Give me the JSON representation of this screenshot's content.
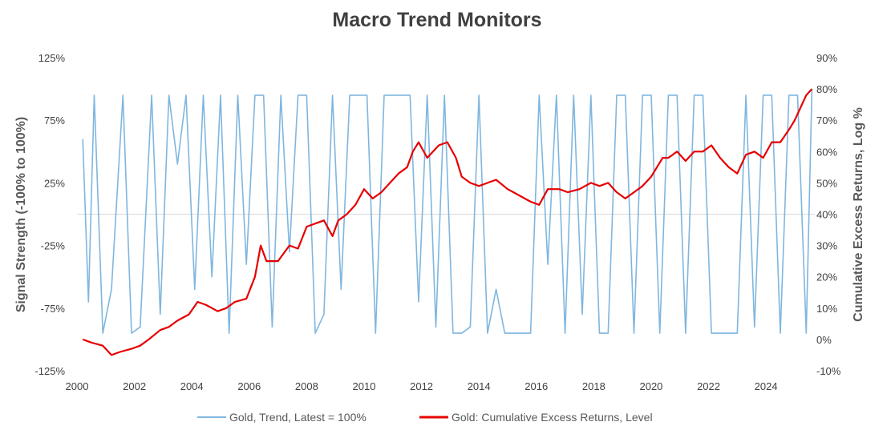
{
  "chart_data": {
    "type": "line",
    "title": "Macro Trend Monitors",
    "ylabel_left": "Signal Strength (-100% to 100%)",
    "ylabel_right": "Cumulative Excess Returns, Log %",
    "x_range": [
      2000,
      2025.7
    ],
    "x_ticks": [
      "2000",
      "2002",
      "2004",
      "2006",
      "2008",
      "2010",
      "2012",
      "2014",
      "2016",
      "2018",
      "2020",
      "2022",
      "2024"
    ],
    "y_left_range": [
      -125,
      125
    ],
    "y_left_ticks": [
      "125%",
      "75%",
      "25%",
      "-25%",
      "-75%",
      "-125%"
    ],
    "y_right_range": [
      -10,
      90
    ],
    "y_right_ticks": [
      "90%",
      "80%",
      "70%",
      "60%",
      "50%",
      "40%",
      "30%",
      "20%",
      "10%",
      "0%",
      "-10%"
    ],
    "grid": false,
    "legend_position": "bottom",
    "colors": {
      "trend": "#7fb6df",
      "returns": "#e60000",
      "zero_line": "#d9d9d9"
    },
    "series": [
      {
        "name": "Gold, Trend, Latest = 100%",
        "axis": "left",
        "note_style": "thin light-blue line oscillating between -100% and 100%",
        "x": [
          2000.2,
          2000.4,
          2000.6,
          2000.9,
          2001.2,
          2001.6,
          2001.9,
          2002.2,
          2002.6,
          2002.9,
          2003.2,
          2003.5,
          2003.8,
          2004.1,
          2004.4,
          2004.7,
          2005.0,
          2005.3,
          2005.6,
          2005.9,
          2006.2,
          2006.5,
          2006.8,
          2007.1,
          2007.4,
          2007.7,
          2008.0,
          2008.3,
          2008.6,
          2008.9,
          2009.2,
          2009.5,
          2009.8,
          2010.1,
          2010.4,
          2010.7,
          2011.0,
          2011.3,
          2011.6,
          2011.9,
          2012.2,
          2012.5,
          2012.8,
          2013.1,
          2013.4,
          2013.7,
          2014.0,
          2014.3,
          2014.6,
          2014.9,
          2015.2,
          2015.5,
          2015.8,
          2016.1,
          2016.4,
          2016.7,
          2017.0,
          2017.3,
          2017.6,
          2017.9,
          2018.2,
          2018.5,
          2018.8,
          2019.1,
          2019.4,
          2019.7,
          2020.0,
          2020.3,
          2020.6,
          2020.9,
          2021.2,
          2021.5,
          2021.8,
          2022.1,
          2022.4,
          2022.7,
          2023.0,
          2023.3,
          2023.6,
          2023.9,
          2024.2,
          2024.5,
          2024.8,
          2025.1,
          2025.4,
          2025.6
        ],
        "values": [
          60,
          -70,
          95,
          -95,
          -60,
          95,
          -95,
          -90,
          95,
          -80,
          95,
          40,
          95,
          -60,
          95,
          -50,
          95,
          -95,
          95,
          -40,
          95,
          95,
          -90,
          95,
          -30,
          95,
          95,
          -95,
          -80,
          95,
          -60,
          95,
          95,
          95,
          -95,
          95,
          95,
          95,
          95,
          -70,
          95,
          -90,
          95,
          -95,
          -95,
          -90,
          95,
          -95,
          -60,
          -95,
          -95,
          -95,
          -95,
          95,
          -40,
          95,
          -95,
          95,
          -80,
          95,
          -95,
          -95,
          95,
          95,
          -95,
          95,
          95,
          -95,
          95,
          95,
          -95,
          95,
          95,
          -95,
          -95,
          -95,
          -95,
          95,
          -90,
          95,
          95,
          -95,
          95,
          95,
          -95,
          100
        ]
      },
      {
        "name": "Gold: Cumulative Excess Returns, Level",
        "axis": "right",
        "note_style": "thick red line",
        "x": [
          2000.2,
          2000.5,
          2000.9,
          2001.2,
          2001.5,
          2001.9,
          2002.2,
          2002.5,
          2002.9,
          2003.2,
          2003.5,
          2003.9,
          2004.2,
          2004.5,
          2004.9,
          2005.2,
          2005.5,
          2005.9,
          2006.2,
          2006.4,
          2006.6,
          2007.0,
          2007.4,
          2007.7,
          2008.0,
          2008.3,
          2008.6,
          2008.9,
          2009.1,
          2009.4,
          2009.7,
          2010.0,
          2010.3,
          2010.6,
          2010.9,
          2011.2,
          2011.5,
          2011.7,
          2011.9,
          2012.2,
          2012.6,
          2012.9,
          2013.2,
          2013.4,
          2013.7,
          2014.0,
          2014.3,
          2014.6,
          2015.0,
          2015.4,
          2015.8,
          2016.1,
          2016.4,
          2016.8,
          2017.1,
          2017.5,
          2017.9,
          2018.2,
          2018.5,
          2018.8,
          2019.1,
          2019.4,
          2019.7,
          2020.0,
          2020.4,
          2020.6,
          2020.9,
          2021.2,
          2021.5,
          2021.8,
          2022.1,
          2022.4,
          2022.7,
          2023.0,
          2023.3,
          2023.6,
          2023.9,
          2024.2,
          2024.5,
          2024.8,
          2025.0,
          2025.2,
          2025.4,
          2025.6
        ],
        "values": [
          0,
          -1,
          -2,
          -5,
          -4,
          -3,
          -2,
          0,
          3,
          4,
          6,
          8,
          12,
          11,
          9,
          10,
          12,
          13,
          20,
          30,
          25,
          25,
          30,
          29,
          36,
          37,
          38,
          33,
          38,
          40,
          43,
          48,
          45,
          47,
          50,
          53,
          55,
          60,
          63,
          58,
          62,
          63,
          58,
          52,
          50,
          49,
          50,
          51,
          48,
          46,
          44,
          43,
          48,
          48,
          47,
          48,
          50,
          49,
          50,
          47,
          45,
          47,
          49,
          52,
          58,
          58,
          60,
          57,
          60,
          60,
          62,
          58,
          55,
          53,
          59,
          60,
          58,
          63,
          63,
          67,
          70,
          74,
          78,
          80
        ]
      }
    ]
  },
  "legend": {
    "item1": "Gold, Trend, Latest = 100%",
    "item2": "Gold: Cumulative Excess Returns, Level"
  }
}
